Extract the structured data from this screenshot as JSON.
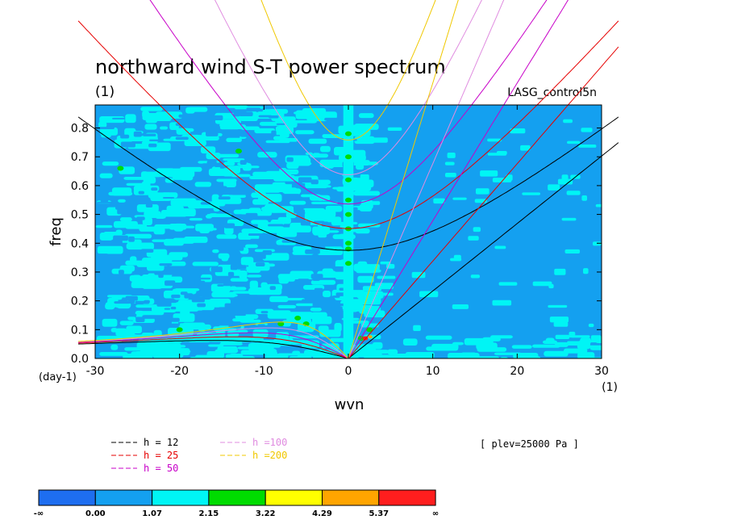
{
  "chart_data": {
    "type": "heatmap",
    "title": "northward wind S-T power spectrum",
    "subtitle": "(1)",
    "annotation": "LASG_control5n",
    "xlabel": "wvn",
    "ylabel": "freq",
    "x_unit_label": "(1)",
    "y_unit_label": "(day-1)",
    "xlim": [
      -30,
      30
    ],
    "ylim": [
      0,
      0.88
    ],
    "x_ticks": [
      -30,
      -20,
      -10,
      0,
      10,
      20,
      30
    ],
    "x_tick_labels": [
      "-30",
      "-20",
      "-10",
      "0",
      "10",
      "20",
      "30"
    ],
    "y_ticks": [
      0.0,
      0.1,
      0.2,
      0.3,
      0.4,
      0.5,
      0.6,
      0.7,
      0.8
    ],
    "y_tick_labels": [
      "0.0",
      "0.1",
      "0.2",
      "0.3",
      "0.4",
      "0.5",
      "0.6",
      "0.7",
      "0.8"
    ],
    "level_text": "[ plev=25000 Pa ]",
    "colorbar": {
      "labels": [
        "-∞",
        "0.00",
        "1.07",
        "2.15",
        "3.22",
        "4.29",
        "5.37",
        "∞"
      ],
      "colors": [
        "#1e6ef0",
        "#14a0f0",
        "#00f5f5",
        "#00dc00",
        "#ffff00",
        "#ffa500",
        "#ff1e1e"
      ]
    },
    "dispersion_curves": [
      {
        "name": "h = 12",
        "color": "#000000",
        "h": 12
      },
      {
        "name": "h = 25",
        "color": "#e60000",
        "h": 25
      },
      {
        "name": "h = 50",
        "color": "#c800c8",
        "h": 50
      },
      {
        "name": "h =100",
        "color": "#e08ce0",
        "h": 100
      },
      {
        "name": "h =200",
        "color": "#f0c800",
        "h": 200
      }
    ],
    "background_color": "#14a0f0",
    "patch_color": "#00f5f5",
    "highlight_color": "#00dc00"
  }
}
